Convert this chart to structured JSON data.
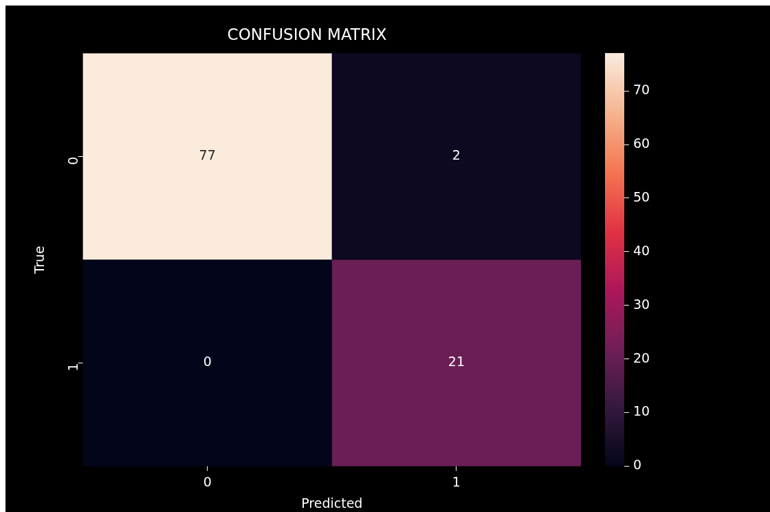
{
  "chart_data": {
    "type": "heatmap",
    "title": "CONFUSION MATRIX",
    "xlabel": "Predicted",
    "ylabel": "True",
    "categories": [
      "0",
      "1"
    ],
    "y_categories": [
      "0",
      "1"
    ],
    "cells": [
      [
        77,
        2
      ],
      [
        0,
        21
      ]
    ],
    "clim": [
      0,
      77
    ],
    "cticks": [
      0,
      10,
      20,
      30,
      40,
      50,
      60,
      70
    ],
    "data_labels": true
  }
}
